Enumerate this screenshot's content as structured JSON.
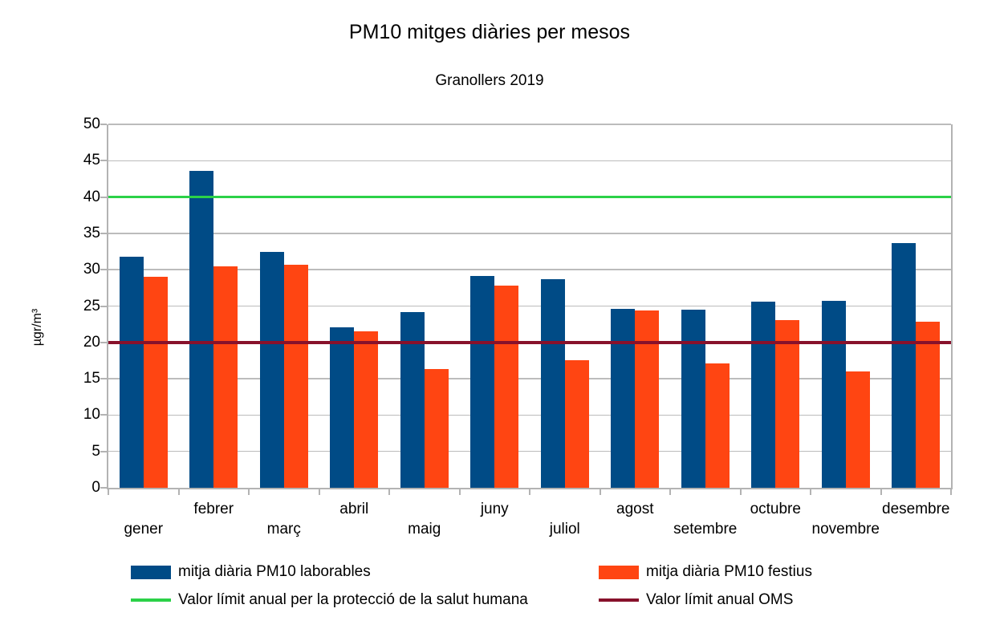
{
  "chart_data": {
    "type": "bar",
    "title": "PM10 mitges diàries per mesos",
    "subtitle": "Granollers 2019",
    "xlabel": "",
    "ylabel": "µgr/m³",
    "ylim": [
      0,
      50
    ],
    "ytick_step": 5,
    "yticks": [
      0,
      5,
      10,
      15,
      20,
      25,
      30,
      35,
      40,
      45,
      50
    ],
    "grid": true,
    "legend_position": "bottom",
    "categories": [
      "gener",
      "febrer",
      "març",
      "abril",
      "maig",
      "juny",
      "juliol",
      "agost",
      "setembre",
      "octubre",
      "novembre",
      "desembre"
    ],
    "series": [
      {
        "key": "laborables",
        "name": "mitja diària PM10 laborables",
        "color": "#004B86",
        "values": [
          31.8,
          43.6,
          32.4,
          22.1,
          24.2,
          29.1,
          28.7,
          24.6,
          24.5,
          25.6,
          25.7,
          33.7
        ]
      },
      {
        "key": "festius",
        "name": "mitja diària PM10 festius",
        "color": "#FF4512",
        "values": [
          29.0,
          30.5,
          30.7,
          21.5,
          16.3,
          27.8,
          17.6,
          24.4,
          17.1,
          23.1,
          16.0,
          22.8
        ]
      }
    ],
    "reference_lines": [
      {
        "key": "salut-humana",
        "name": "Valor límit anual per la protecció de la salut humana",
        "value": 40,
        "color": "#2BD148"
      },
      {
        "key": "oms",
        "name": "Valor límit anual OMS",
        "value": 20,
        "color": "#88112B"
      }
    ]
  }
}
